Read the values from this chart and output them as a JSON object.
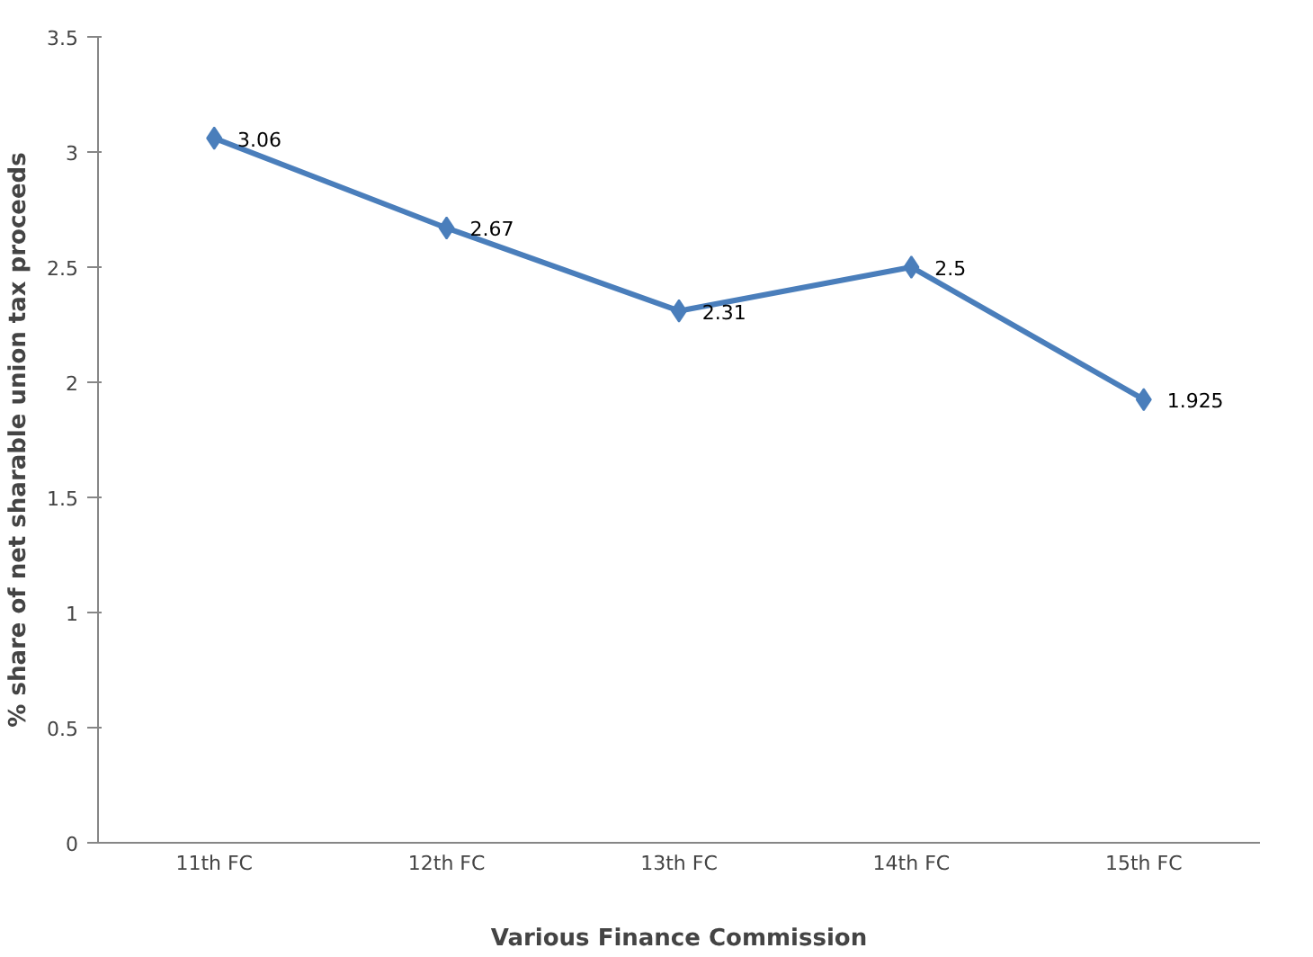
{
  "chart_data": {
    "type": "line",
    "xlabel": "Various Finance Commission",
    "ylabel": "% share of net sharable union tax proceeds",
    "categories": [
      "11th FC",
      "12th FC",
      "13th FC",
      "14th FC",
      "15th FC"
    ],
    "series": [
      {
        "color": "#4a7ebb",
        "values": [
          3.06,
          2.67,
          2.31,
          2.5,
          1.925
        ]
      }
    ],
    "ylim": [
      0,
      3.5
    ],
    "yticks": [
      0,
      0.5,
      1,
      1.5,
      2,
      2.5,
      3,
      3.5
    ],
    "data_labels": true,
    "marker": "diamond",
    "line_style": "solid",
    "grid": false
  }
}
